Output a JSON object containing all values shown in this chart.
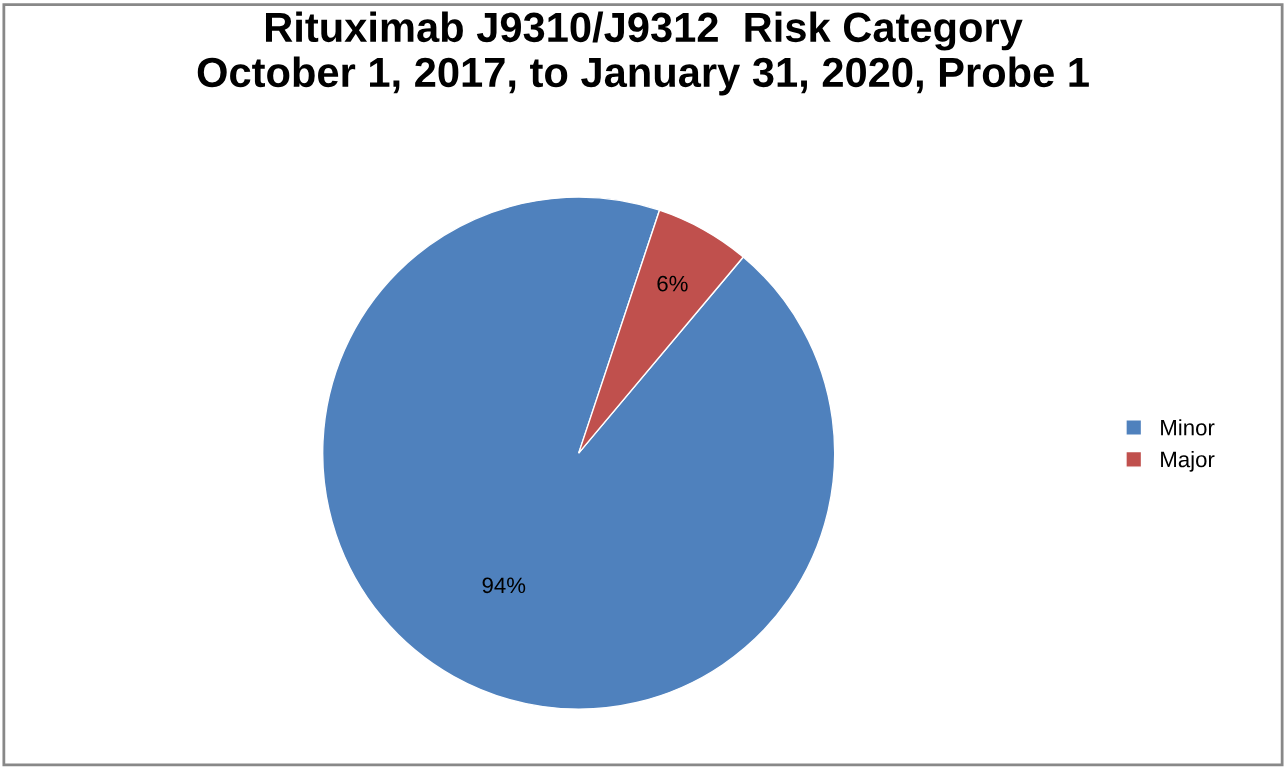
{
  "chart_data": {
    "type": "pie",
    "title": "Rituximab J9310/J9312  Risk Category\nOctober 1, 2017, to January 31, 2020, Probe 1",
    "categories": [
      "Minor",
      "Major"
    ],
    "values": [
      94,
      6
    ],
    "value_labels": [
      "94%",
      "6%"
    ],
    "colors": [
      "#4f81bd",
      "#c0504d"
    ],
    "legend": "right"
  }
}
